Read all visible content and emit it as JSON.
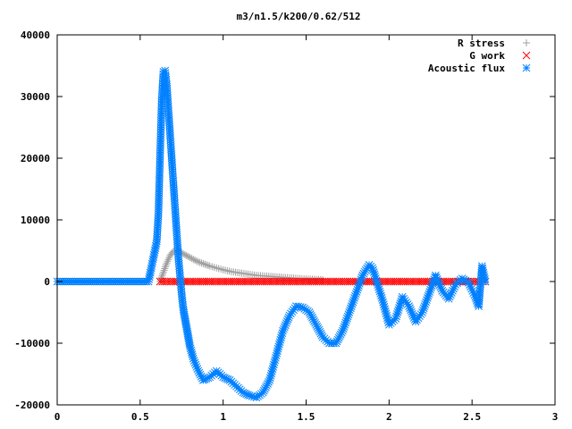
{
  "chart_data": {
    "type": "scatter",
    "title": "m3/n1.5/k200/0.62/512",
    "xlabel": "",
    "ylabel": "",
    "xlim": [
      0,
      3
    ],
    "ylim": [
      -20000,
      40000
    ],
    "x_ticks": [
      0,
      0.5,
      1,
      1.5,
      2,
      2.5,
      3
    ],
    "x_tick_labels": [
      "0",
      "0.5",
      "1",
      "1.5",
      "2",
      "2.5",
      "3"
    ],
    "y_ticks": [
      -20000,
      -10000,
      0,
      10000,
      20000,
      30000,
      40000
    ],
    "y_tick_labels": [
      "-20000",
      "-10000",
      "0",
      "10000",
      "20000",
      "30000",
      "40000"
    ],
    "grid": false,
    "legend_position": "top-right",
    "series": [
      {
        "name": "R stress",
        "marker": "plus",
        "color": "#a0a0a0",
        "x": [
          0.62,
          0.64,
          0.66,
          0.68,
          0.7,
          0.72,
          0.74,
          0.76,
          0.78,
          0.8,
          0.82,
          0.85,
          0.88,
          0.92,
          0.96,
          1.0,
          1.05,
          1.1,
          1.15,
          1.2,
          1.3,
          1.4,
          1.5,
          1.6
        ],
        "y": [
          0,
          1500,
          3000,
          4200,
          4900,
          5000,
          4800,
          4500,
          4200,
          3900,
          3600,
          3200,
          2900,
          2500,
          2200,
          1900,
          1600,
          1400,
          1200,
          1000,
          800,
          600,
          400,
          300
        ]
      },
      {
        "name": "G work",
        "marker": "cross",
        "color": "#ff0000",
        "x": [
          0.62,
          0.7,
          0.8,
          0.9,
          1.0,
          1.1,
          1.2,
          1.3,
          1.4,
          1.5,
          1.6,
          1.7,
          1.8,
          1.9,
          2.0,
          2.1,
          2.2,
          2.3,
          2.4,
          2.5,
          2.58
        ],
        "y": [
          0,
          0,
          0,
          0,
          0,
          0,
          0,
          0,
          0,
          0,
          0,
          0,
          0,
          0,
          0,
          0,
          0,
          0,
          0,
          0,
          0
        ]
      },
      {
        "name": "Acoustic flux",
        "marker": "star",
        "color": "#0080ff",
        "x": [
          0.0,
          0.05,
          0.1,
          0.15,
          0.2,
          0.25,
          0.3,
          0.35,
          0.4,
          0.45,
          0.5,
          0.55,
          0.6,
          0.61,
          0.62,
          0.63,
          0.64,
          0.65,
          0.66,
          0.67,
          0.68,
          0.69,
          0.7,
          0.71,
          0.72,
          0.73,
          0.74,
          0.75,
          0.76,
          0.77,
          0.78,
          0.79,
          0.8,
          0.82,
          0.85,
          0.88,
          0.92,
          0.96,
          1.0,
          1.04,
          1.08,
          1.12,
          1.16,
          1.2,
          1.24,
          1.28,
          1.32,
          1.36,
          1.4,
          1.44,
          1.48,
          1.52,
          1.56,
          1.6,
          1.64,
          1.68,
          1.72,
          1.76,
          1.8,
          1.84,
          1.88,
          1.9,
          1.92,
          1.96,
          2.0,
          2.04,
          2.08,
          2.12,
          2.16,
          2.2,
          2.24,
          2.28,
          2.32,
          2.36,
          2.4,
          2.44,
          2.48,
          2.52,
          2.54,
          2.56,
          2.58
        ],
        "y": [
          0,
          0,
          0,
          0,
          0,
          0,
          0,
          0,
          0,
          0,
          0,
          0,
          6500,
          11000,
          20500,
          29500,
          34000,
          34200,
          32000,
          28000,
          24000,
          20000,
          16000,
          12000,
          8000,
          4000,
          1000,
          -2000,
          -4500,
          -6000,
          -7500,
          -9000,
          -10500,
          -12500,
          -14500,
          -16000,
          -15500,
          -14500,
          -15500,
          -16000,
          -17000,
          -18000,
          -18500,
          -18800,
          -18000,
          -16000,
          -12000,
          -8000,
          -5500,
          -4000,
          -4200,
          -5000,
          -7000,
          -9000,
          -10000,
          -10000,
          -8000,
          -5000,
          -2000,
          1000,
          2700,
          2200,
          500,
          -3000,
          -7000,
          -6000,
          -2500,
          -4000,
          -6500,
          -5000,
          -2000,
          1000,
          -1500,
          -2800,
          -500,
          500,
          -200,
          -2500,
          -4000,
          2500,
          0
        ]
      }
    ]
  }
}
